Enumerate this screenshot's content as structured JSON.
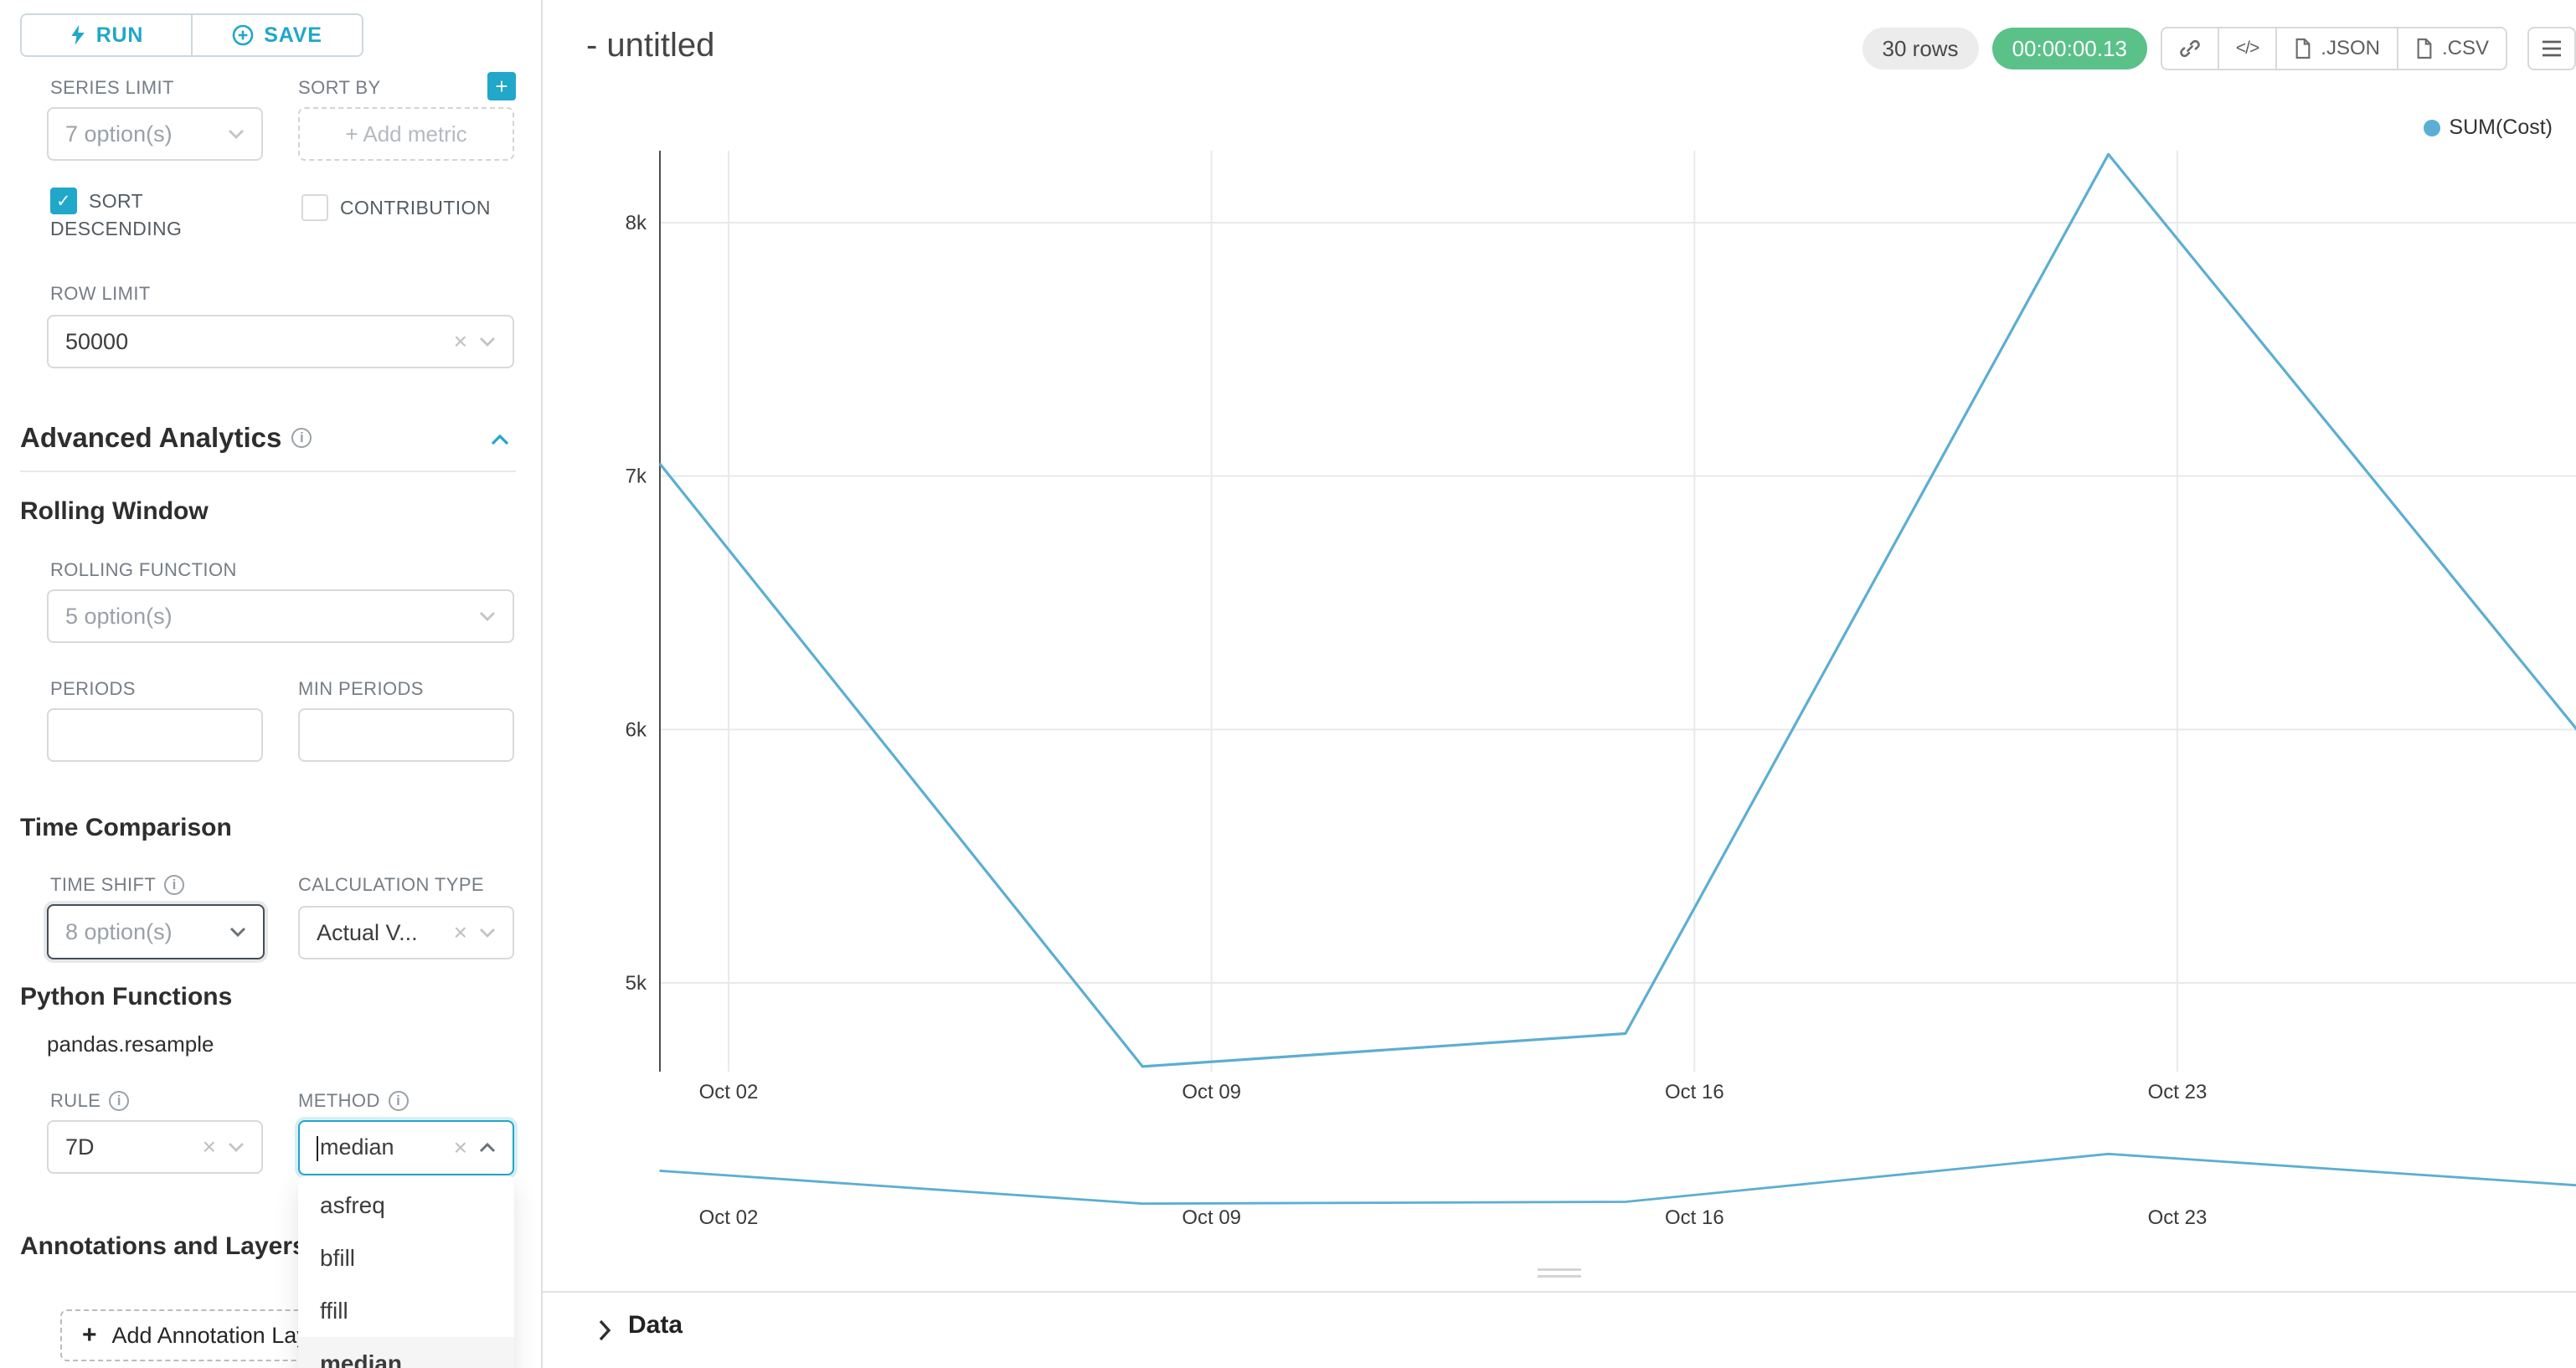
{
  "colors": {
    "accent": "#20a7c9",
    "success_badge": "#5ac189",
    "chart_line": "#5caed2"
  },
  "sidebar": {
    "run_button": "RUN",
    "save_button": "SAVE",
    "series_limit": {
      "label": "SERIES LIMIT",
      "value": "7 option(s)"
    },
    "sort_by": {
      "label": "SORT BY",
      "placeholder": "+ Add metric"
    },
    "sort_descending": {
      "label": "SORT DESCENDING",
      "checked": true
    },
    "contribution": {
      "label": "CONTRIBUTION",
      "checked": false
    },
    "row_limit": {
      "label": "ROW LIMIT",
      "value": "50000"
    },
    "advanced_analytics_title": "Advanced Analytics",
    "rolling_window_title": "Rolling Window",
    "rolling_function": {
      "label": "ROLLING FUNCTION",
      "value": "5 option(s)"
    },
    "periods": {
      "label": "PERIODS",
      "value": ""
    },
    "min_periods": {
      "label": "MIN PERIODS",
      "value": ""
    },
    "time_comparison_title": "Time Comparison",
    "time_shift": {
      "label": "TIME SHIFT",
      "value": "8 option(s)"
    },
    "calculation_type": {
      "label": "CALCULATION TYPE",
      "value": "Actual V..."
    },
    "python_functions_title": "Python Functions",
    "python_function_name": "pandas.resample",
    "rule": {
      "label": "RULE",
      "value": "7D"
    },
    "method": {
      "label": "METHOD",
      "value": "median",
      "selected": "median",
      "options": [
        "asfreq",
        "bfill",
        "ffill",
        "median"
      ]
    },
    "annotations_title": "Annotations and Layers",
    "add_annotation_button": "Add Annotation Layer"
  },
  "header": {
    "title": "- untitled",
    "rows_badge": "30 rows",
    "timer_badge": "00:00:00.13",
    "json_button": ".JSON",
    "csv_button": ".CSV"
  },
  "data_panel": {
    "title": "Data"
  },
  "chart_data": {
    "type": "line",
    "title": "",
    "grid": true,
    "legend_position": "top-right",
    "mini_chart": true,
    "series": [
      {
        "name": "SUM(Cost)",
        "color": "#5caed2",
        "points": [
          {
            "x_day": 0,
            "y": 7050
          },
          {
            "x_day": 7,
            "y": 4670
          },
          {
            "x_day": 14,
            "y": 4800
          },
          {
            "x_day": 21,
            "y": 8270
          },
          {
            "x_day": 28,
            "y": 5930
          }
        ]
      }
    ],
    "x_ticks": [
      {
        "day": 1,
        "label": "Oct 02"
      },
      {
        "day": 8,
        "label": "Oct 09"
      },
      {
        "day": 15,
        "label": "Oct 16"
      },
      {
        "day": 22,
        "label": "Oct 23"
      }
    ],
    "y_ticks": [
      {
        "value": 5000,
        "label": "5k"
      },
      {
        "value": 6000,
        "label": "6k"
      },
      {
        "value": 7000,
        "label": "7k"
      },
      {
        "value": 8000,
        "label": "8k"
      }
    ],
    "ylim": [
      4650,
      8290
    ]
  }
}
